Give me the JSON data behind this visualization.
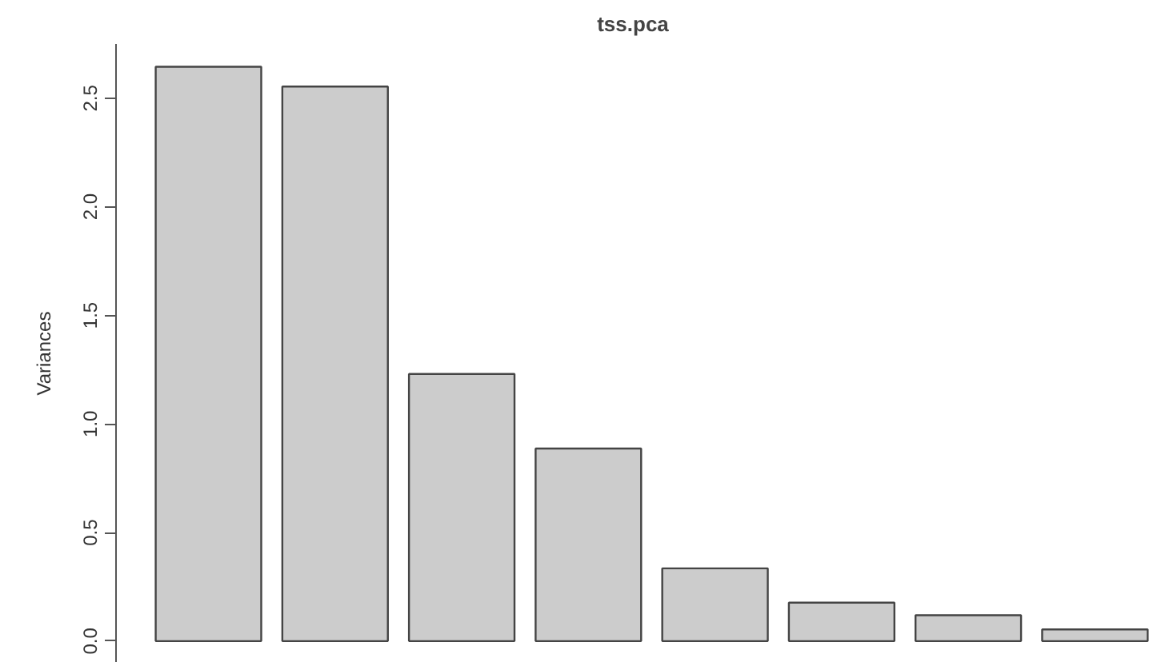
{
  "chart_data": {
    "type": "bar",
    "title": "tss.pca",
    "ylabel": "Variances",
    "categories": [
      null,
      null,
      null,
      null,
      null,
      null,
      null,
      null
    ],
    "values": [
      2.645,
      2.554,
      1.23,
      0.887,
      0.335,
      0.177,
      0.119,
      0.054
    ],
    "color": "#cccccc",
    "ylim": [
      -0.1,
      2.75
    ],
    "yticks": [
      {
        "value": 0,
        "label": "0.0"
      },
      0.5,
      {
        "value": 1,
        "label": "1.0"
      },
      1.5,
      {
        "value": 2,
        "label": "2.0"
      },
      2.5
    ],
    "grid": false,
    "tick_labels": "y"
  }
}
